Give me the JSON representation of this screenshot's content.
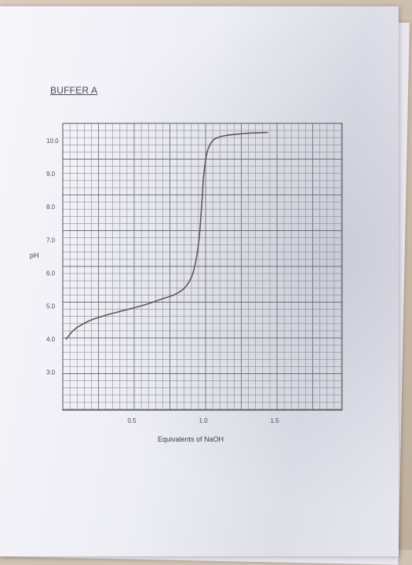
{
  "chart_data": {
    "type": "line",
    "title": "BUFFER A",
    "xlabel": "Equivalents of NaOH",
    "ylabel": "pH",
    "x_ticks": [
      "0.5",
      "1.0",
      "1.5"
    ],
    "y_ticks": [
      "10.0",
      "9.0",
      "8.0",
      "7.0",
      "6.0",
      "5.0",
      "4.0",
      "3.0"
    ],
    "xlim": [
      0.0,
      1.85
    ],
    "ylim": [
      2.0,
      10.4
    ],
    "grid": true,
    "series": [
      {
        "x": [
          0.04,
          0.1,
          0.2,
          0.3,
          0.4,
          0.5,
          0.6,
          0.7,
          0.8,
          0.87,
          0.92,
          0.95,
          0.97,
          0.98,
          0.99,
          1.0,
          1.01,
          1.02,
          1.03,
          1.05,
          1.08,
          1.15,
          1.3,
          1.45
        ],
        "y": [
          4.0,
          4.3,
          4.55,
          4.7,
          4.82,
          4.93,
          5.05,
          5.2,
          5.35,
          5.55,
          5.9,
          6.4,
          7.0,
          7.5,
          8.1,
          8.8,
          9.2,
          9.5,
          9.7,
          9.9,
          10.05,
          10.15,
          10.22,
          10.25
        ],
        "color": "#5a5a5a"
      }
    ]
  }
}
